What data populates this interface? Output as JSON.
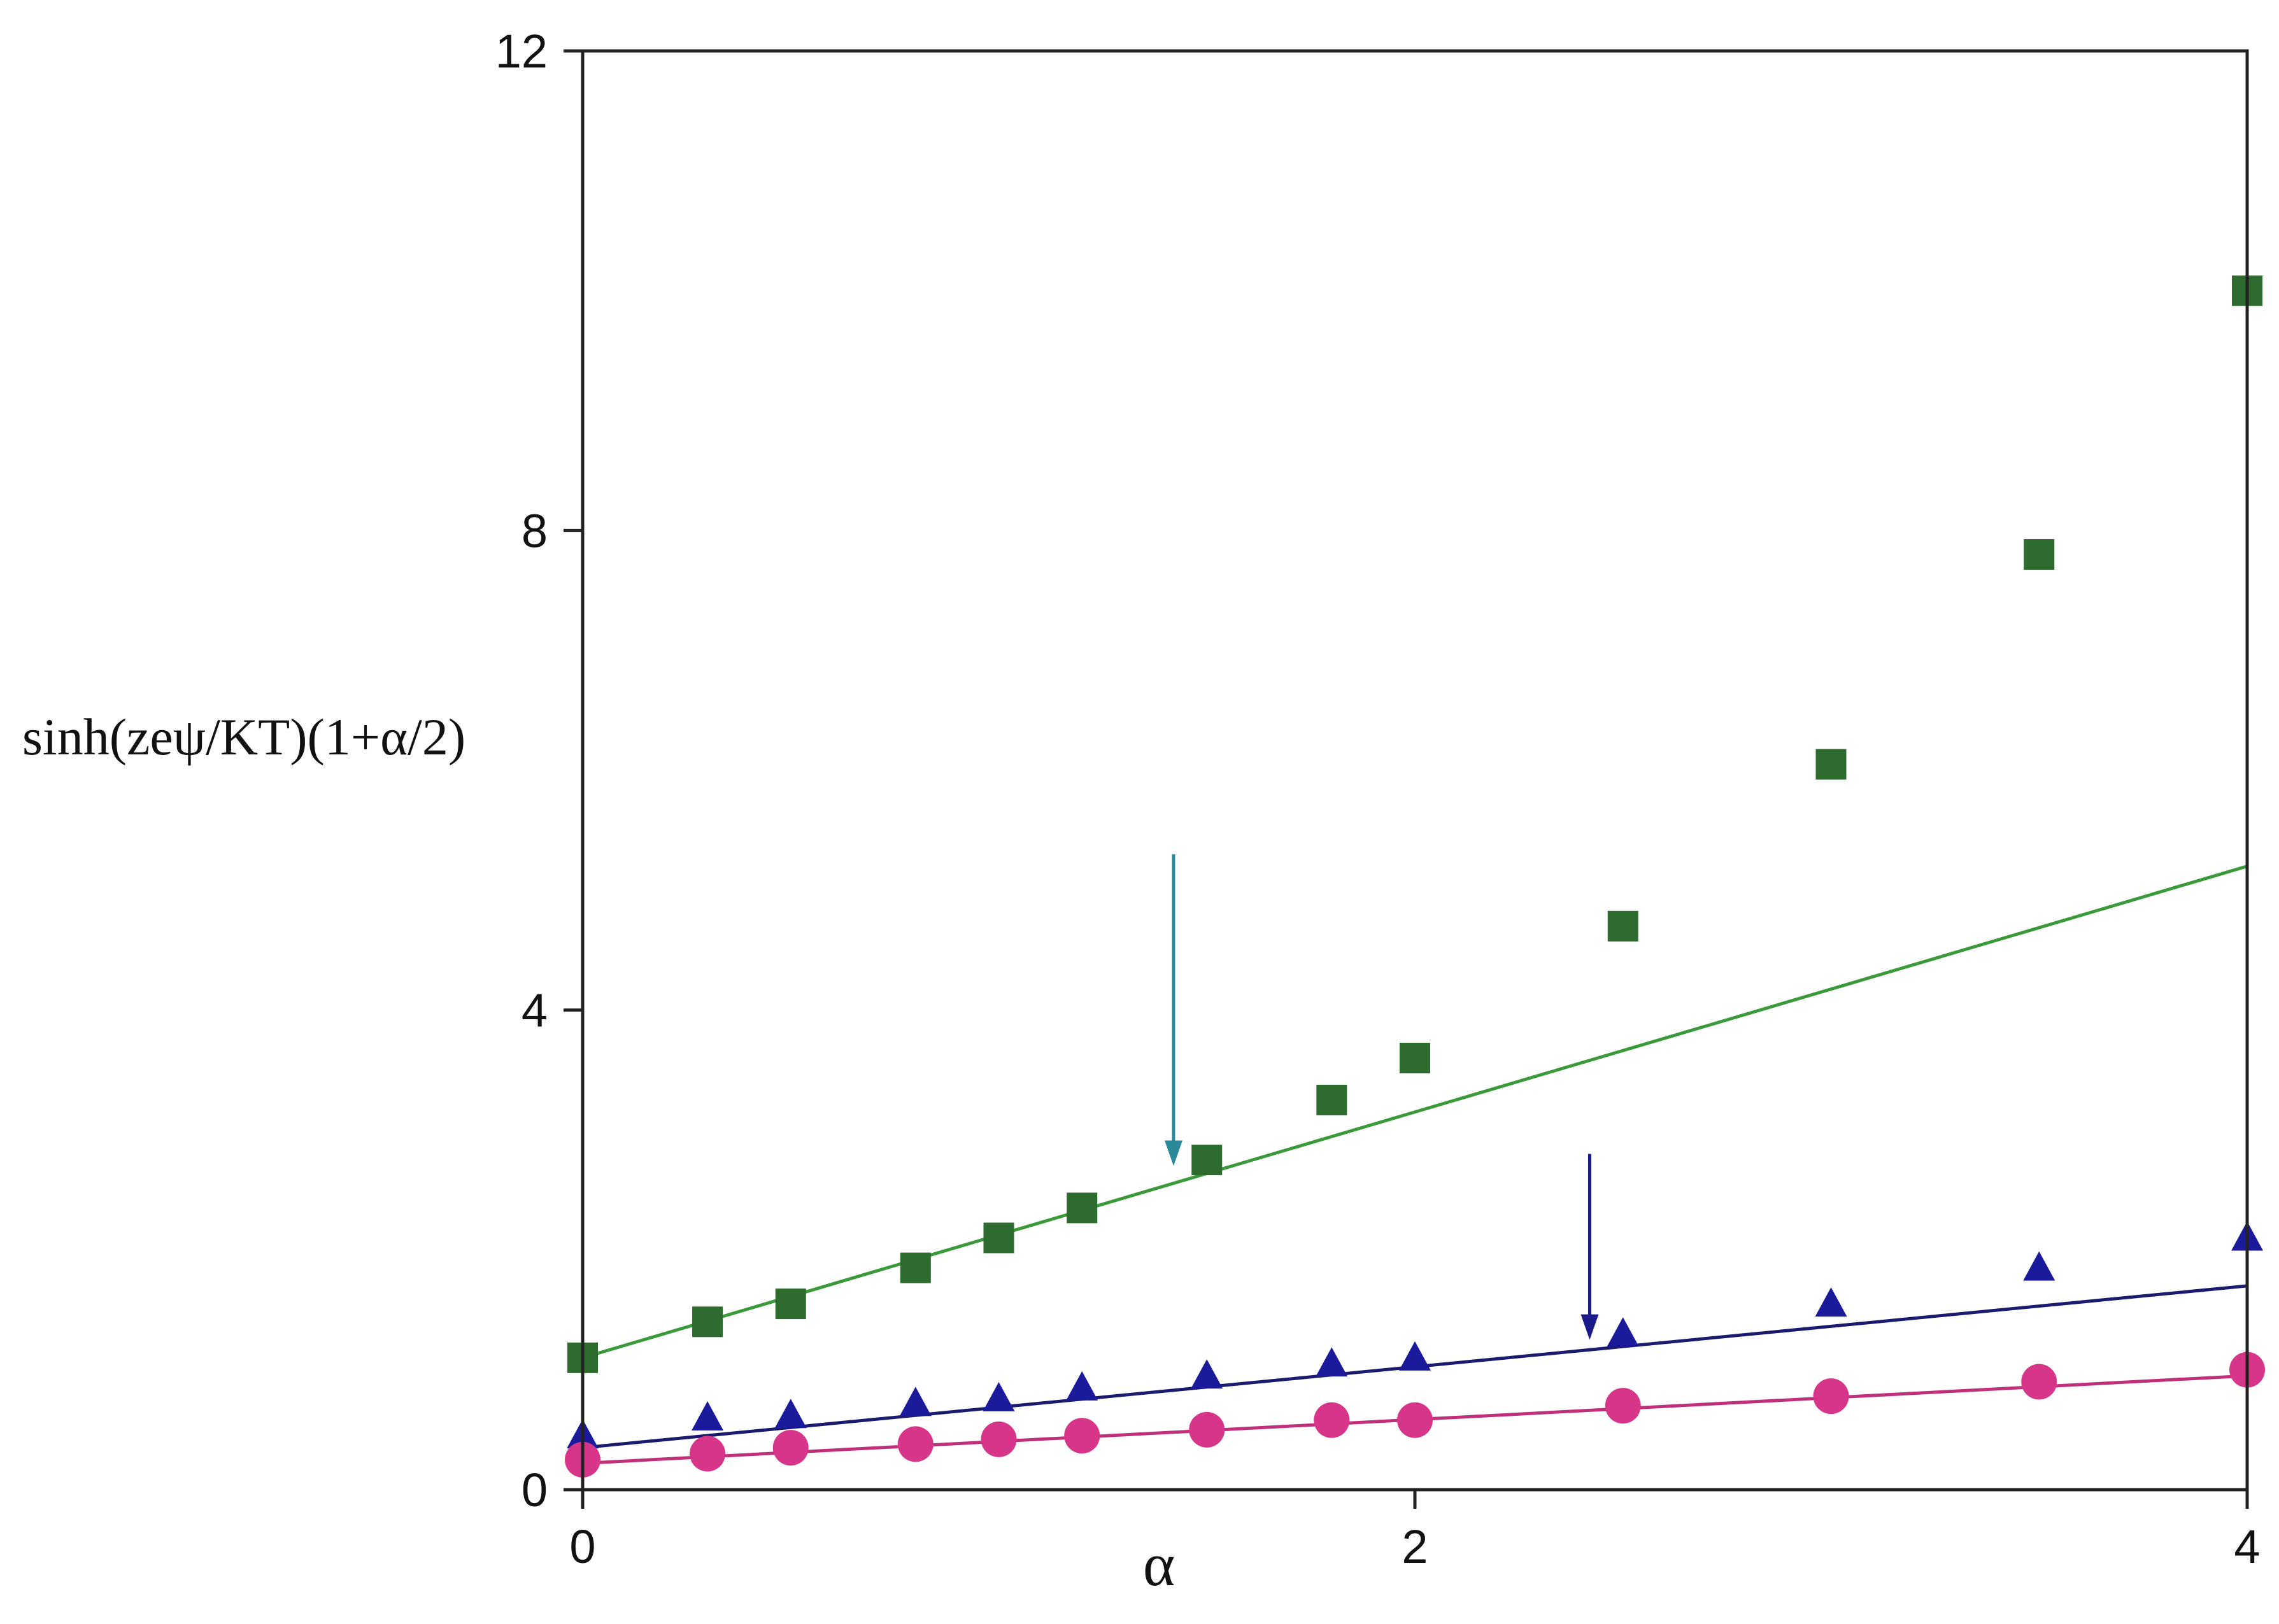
{
  "chart_data": {
    "type": "scatter",
    "title": "",
    "xlabel": "α",
    "ylabel": "sinh(zeψ/KT)(1+α/2)",
    "xlim": [
      0,
      4
    ],
    "ylim": [
      0,
      12
    ],
    "x_ticks": [
      {
        "value": 0,
        "label": "0"
      },
      {
        "value": 2,
        "label": "2"
      },
      {
        "value": 4,
        "label": "4"
      }
    ],
    "y_ticks": [
      {
        "value": 0,
        "label": "0"
      },
      {
        "value": 4,
        "label": "4"
      },
      {
        "value": 8,
        "label": "8"
      },
      {
        "value": 12,
        "label": "12"
      }
    ],
    "grid": false,
    "legend": "none",
    "series": [
      {
        "name": "squares",
        "marker": "square",
        "color": "#2e6b2e",
        "line_color": "#3a9a3a",
        "x": [
          0,
          0.3,
          0.5,
          0.8,
          1.0,
          1.2,
          1.5,
          1.8,
          2.0,
          2.5,
          3.0,
          3.5,
          4.0
        ],
        "y": [
          1.1,
          1.4,
          1.55,
          1.85,
          2.1,
          2.35,
          2.75,
          3.25,
          3.6,
          4.7,
          6.05,
          7.8,
          10.0
        ],
        "fit": [
          [
            0,
            1.1
          ],
          [
            4,
            5.2
          ]
        ]
      },
      {
        "name": "triangles",
        "marker": "triangle",
        "color": "#1a1a9a",
        "line_color": "#1a1a6e",
        "x": [
          0,
          0.3,
          0.5,
          0.8,
          1.0,
          1.2,
          1.5,
          1.8,
          2.0,
          2.5,
          3.0,
          3.5,
          4.0
        ],
        "y": [
          0.45,
          0.6,
          0.62,
          0.72,
          0.76,
          0.85,
          0.95,
          1.05,
          1.1,
          1.3,
          1.55,
          1.85,
          2.1
        ],
        "fit": [
          [
            0,
            0.35
          ],
          [
            4,
            1.7
          ]
        ]
      },
      {
        "name": "circles",
        "marker": "circle",
        "color": "#d6358a",
        "line_color": "#c0307a",
        "x": [
          0,
          0.3,
          0.5,
          0.8,
          1.0,
          1.2,
          1.5,
          1.8,
          2.0,
          2.5,
          3.0,
          3.5,
          4.0
        ],
        "y": [
          0.25,
          0.3,
          0.35,
          0.38,
          0.42,
          0.45,
          0.5,
          0.58,
          0.58,
          0.7,
          0.78,
          0.9,
          1.0
        ],
        "fit": [
          [
            0,
            0.22
          ],
          [
            4,
            0.95
          ]
        ]
      }
    ],
    "annotations": [
      {
        "name": "arrow-teal",
        "color": "#2a8a9a",
        "x": 1.42,
        "y_from": 5.3,
        "y_to": 2.7
      },
      {
        "name": "arrow-navy",
        "color": "#1a1a8a",
        "x": 2.42,
        "y_from": 2.8,
        "y_to": 1.25
      }
    ]
  }
}
